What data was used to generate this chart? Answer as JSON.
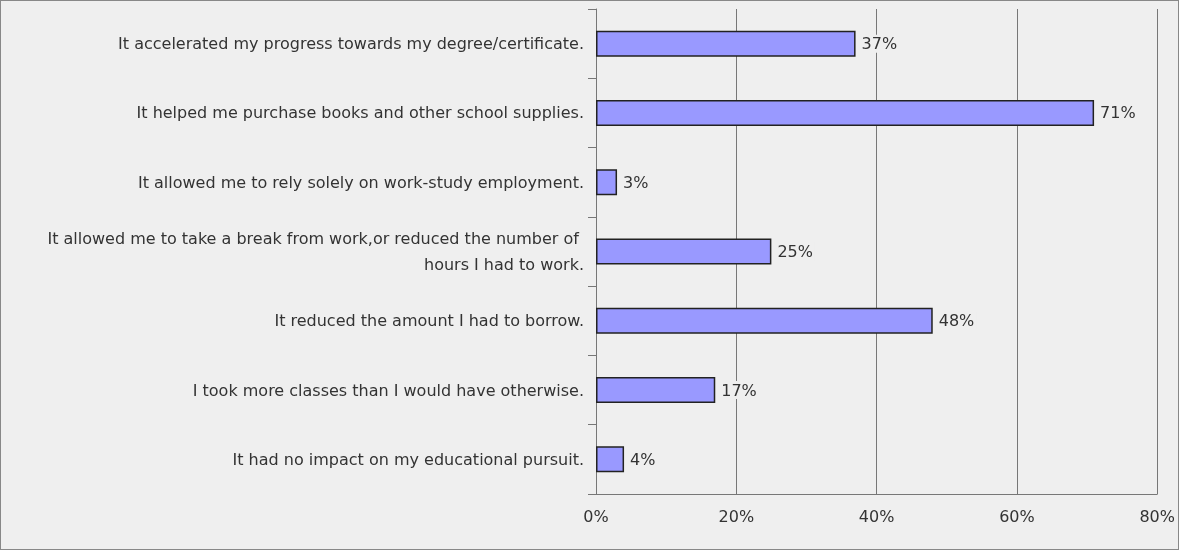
{
  "chart_data": {
    "type": "bar",
    "orientation": "horizontal",
    "categories": [
      "It accelerated my progress towards my degree/certificate.",
      "It helped me purchase books and other school supplies.",
      "It allowed me to rely solely on work-study employment.",
      "It allowed me to take a break from work,or reduced the number of hours I had to work.",
      "It reduced the amount I had to borrow.",
      "I took more classes than I would have otherwise.",
      "It had no impact on my educational pursuit."
    ],
    "values": [
      37,
      71,
      3,
      25,
      48,
      17,
      4
    ],
    "value_labels": [
      "37%",
      "71%",
      "3%",
      "25%",
      "48%",
      "17%",
      "4%"
    ],
    "color": "#9999ff",
    "xlim": [
      0,
      80
    ],
    "xticks": [
      {
        "value": 0,
        "label": "0%"
      },
      {
        "value": 20,
        "label": "20%"
      },
      {
        "value": 40,
        "label": "40%"
      },
      {
        "value": 60,
        "label": "60%"
      },
      {
        "value": 80,
        "label": "80%"
      }
    ],
    "grid": "x"
  }
}
